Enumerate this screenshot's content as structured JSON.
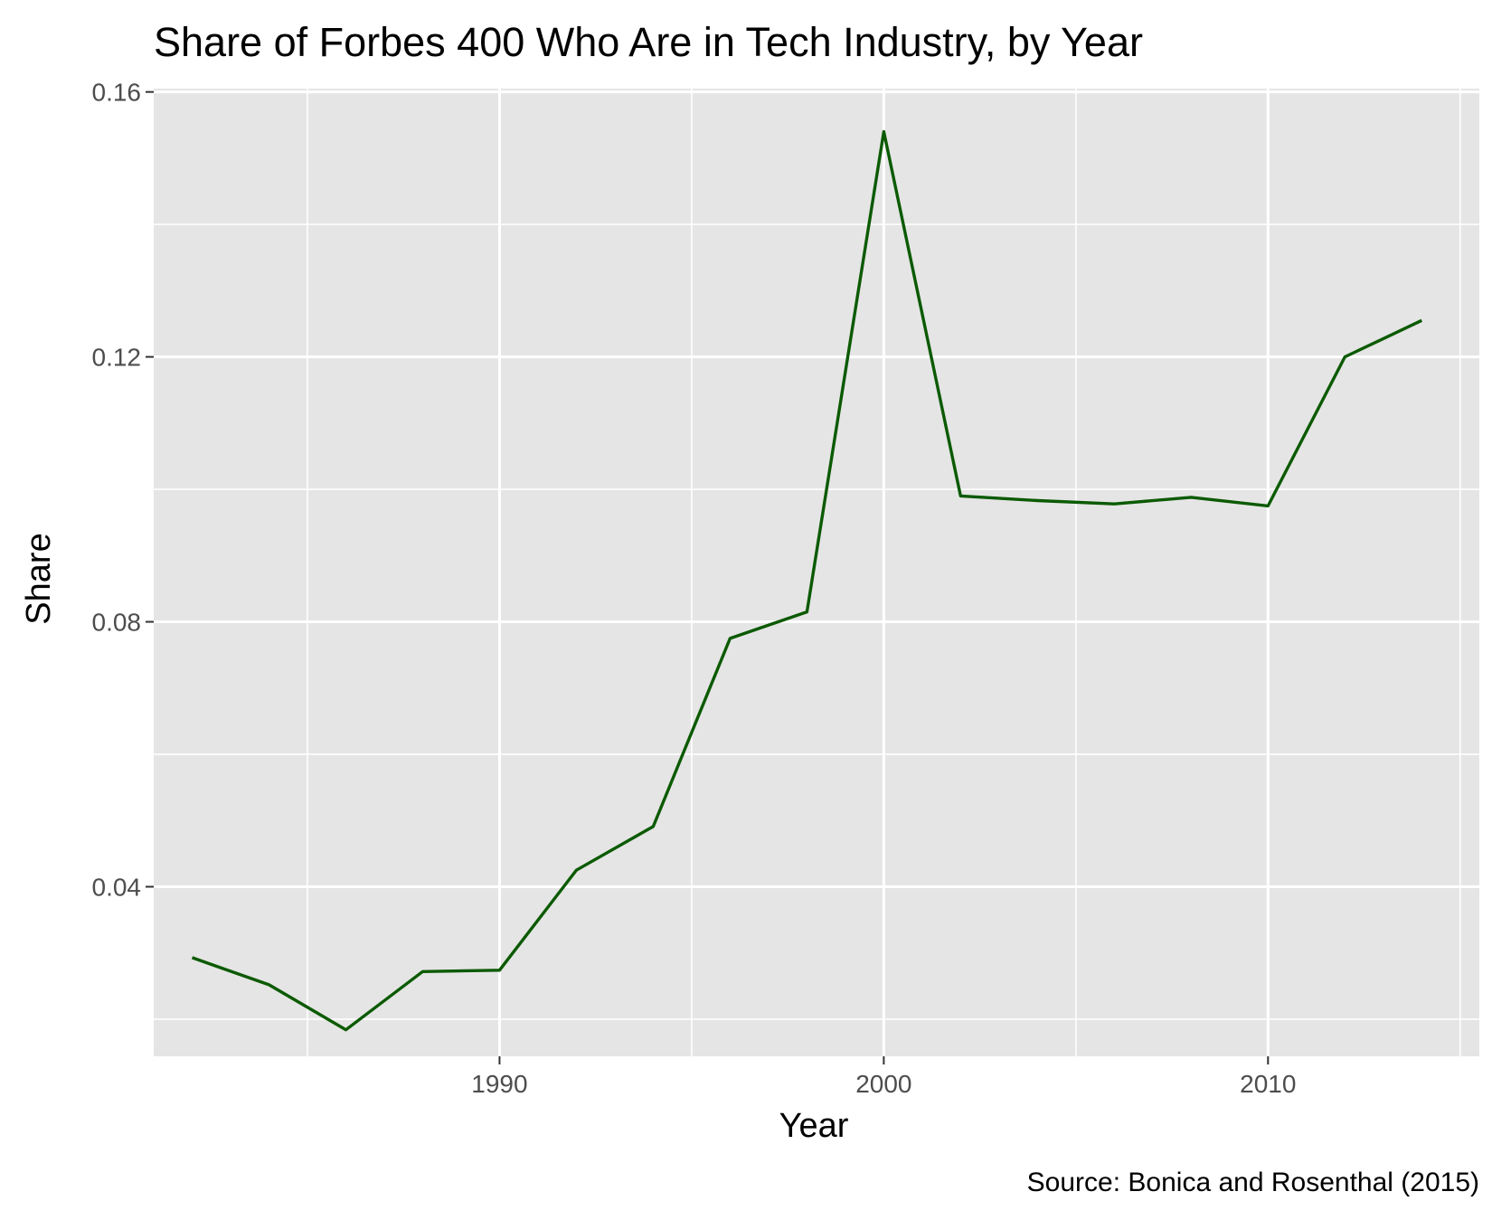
{
  "chart_data": {
    "type": "line",
    "title": "Share of Forbes 400 Who Are in Tech Industry, by Year",
    "xlabel": "Year",
    "ylabel": "Share",
    "caption": "Source: Bonica and Rosenthal (2015)",
    "xlim": [
      1981,
      2015.5
    ],
    "ylim": [
      0.0144,
      0.1605
    ],
    "x_ticks": [
      1990,
      2000,
      2010
    ],
    "x_tick_labels": [
      "1990",
      "2000",
      "2010"
    ],
    "y_ticks": [
      0.04,
      0.08,
      0.12,
      0.16
    ],
    "y_tick_labels": [
      "0.04",
      "0.08",
      "0.12",
      "0.16"
    ],
    "grid": true,
    "panel_background": "#e5e5e5",
    "grid_color": "#ffffff",
    "line_color": "#0b5a00",
    "series": [
      {
        "x": [
          1982,
          1984,
          1986,
          1988,
          1990,
          1992,
          1994,
          1996,
          1998,
          2000,
          2002,
          2004,
          2006,
          2008,
          2010,
          2012,
          2014
        ],
        "values": [
          0.0293,
          0.0252,
          0.0184,
          0.0272,
          0.0274,
          0.0425,
          0.0491,
          0.0775,
          0.0815,
          0.154,
          0.099,
          0.0983,
          0.0978,
          0.0988,
          0.0975,
          0.12,
          0.1255
        ]
      }
    ]
  }
}
